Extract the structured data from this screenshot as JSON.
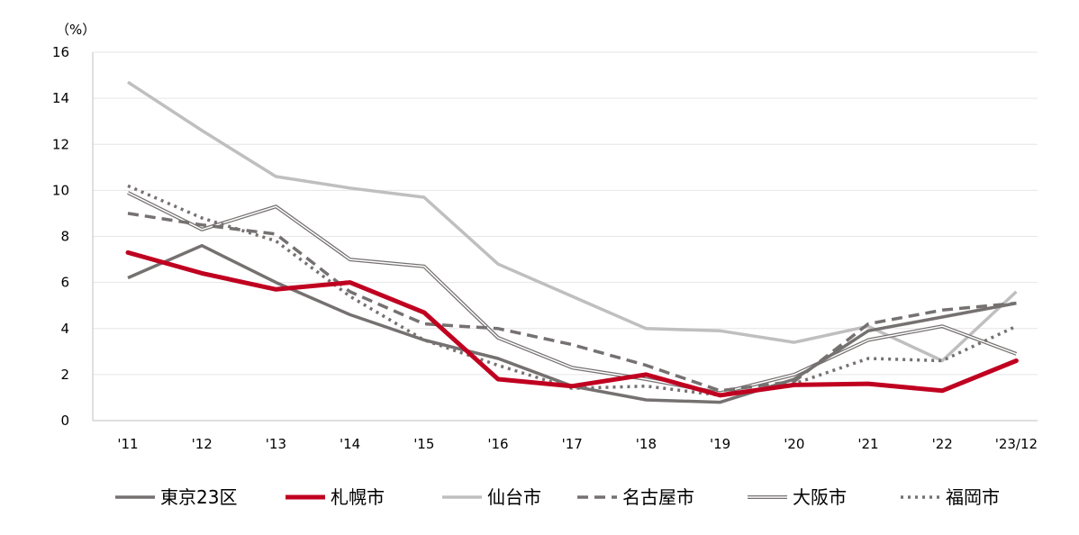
{
  "chart_data": {
    "type": "line",
    "unit_label": "（%）",
    "categories": [
      "'11",
      "'12",
      "'13",
      "'14",
      "'15",
      "'16",
      "'17",
      "'18",
      "'19",
      "'20",
      "'21",
      "'22",
      "'23/12"
    ],
    "ylim": [
      0,
      16
    ],
    "yticks": [
      0,
      2,
      4,
      6,
      8,
      10,
      12,
      14,
      16
    ],
    "grid": true,
    "legend_position": "bottom",
    "series": [
      {
        "name": "東京23区",
        "color": "#767171",
        "style": "solid-thick",
        "values": [
          6.2,
          7.6,
          6.0,
          4.6,
          3.5,
          2.7,
          1.5,
          0.9,
          0.8,
          1.8,
          3.9,
          4.5,
          5.1
        ]
      },
      {
        "name": "札幌市",
        "color": "#c00020",
        "style": "solid-bold",
        "values": [
          7.3,
          6.4,
          5.7,
          6.0,
          4.7,
          1.8,
          1.5,
          2.0,
          1.1,
          1.55,
          1.6,
          1.3,
          2.6
        ]
      },
      {
        "name": "仙台市",
        "color": "#bfbfbf",
        "style": "solid-thick",
        "values": [
          14.7,
          12.6,
          10.6,
          10.1,
          9.7,
          6.8,
          5.4,
          4.0,
          3.9,
          3.4,
          4.1,
          2.6,
          5.6
        ]
      },
      {
        "name": "名古屋市",
        "color": "#767171",
        "style": "dashed",
        "values": [
          9.0,
          8.5,
          8.1,
          5.6,
          4.2,
          4.0,
          3.3,
          2.4,
          1.3,
          1.7,
          4.2,
          4.8,
          5.1
        ]
      },
      {
        "name": "大阪市",
        "color": "#767171",
        "style": "double",
        "values": [
          9.9,
          8.3,
          9.3,
          7.0,
          6.7,
          3.6,
          2.3,
          1.8,
          1.2,
          2.0,
          3.5,
          4.1,
          2.9
        ]
      },
      {
        "name": "福岡市",
        "color": "#767171",
        "style": "dotted",
        "values": [
          10.2,
          8.8,
          7.8,
          5.4,
          3.5,
          2.4,
          1.4,
          1.5,
          1.1,
          1.6,
          2.7,
          2.6,
          4.1
        ]
      }
    ]
  }
}
